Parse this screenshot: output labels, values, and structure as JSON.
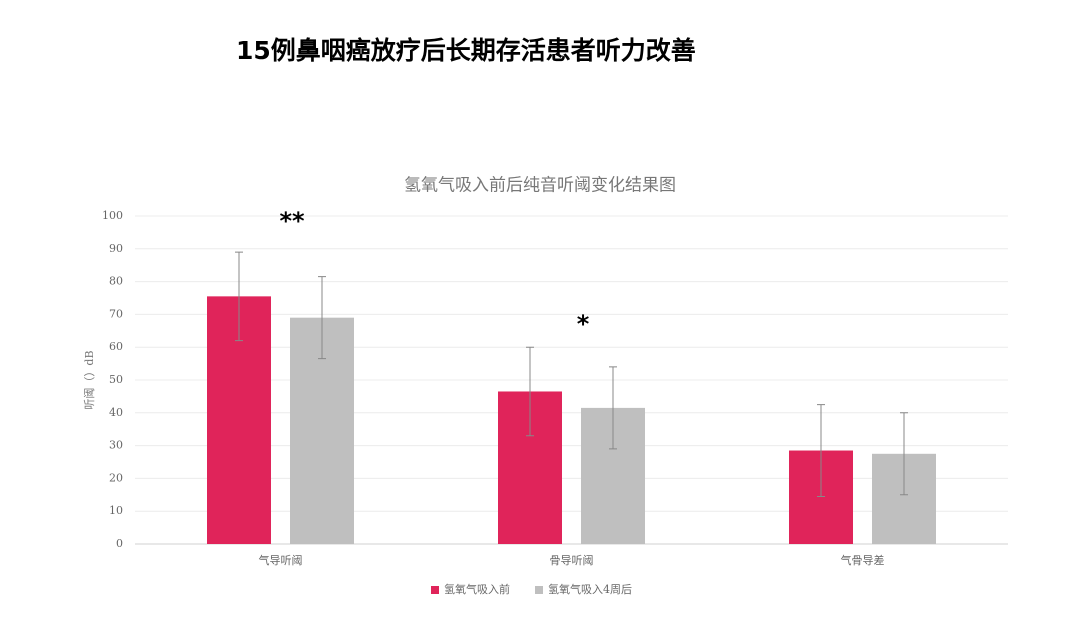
{
  "title": "15例鼻咽癌放疗后长期存活患者听力改善",
  "chart_data": {
    "type": "bar",
    "title": "氢氧气吸入前后纯音听阈变化结果图",
    "y_label": "听阈（）dB",
    "categories": [
      "气导听阈",
      "骨导听阈",
      "气骨导差"
    ],
    "series": [
      {
        "name": "氢氧气吸入前",
        "color": "#e0245a",
        "values": [
          75.5,
          46.5,
          28.5
        ],
        "errors": [
          13.5,
          13.5,
          14
        ]
      },
      {
        "name": "氢氧气吸入4周后",
        "color": "#bfbfbf",
        "values": [
          69,
          41.5,
          27.5
        ],
        "errors": [
          12.5,
          12.5,
          12.5
        ]
      }
    ],
    "annotations": [
      "**",
      "*"
    ],
    "ylim": [
      0,
      100
    ],
    "yticks": [
      0,
      10,
      20,
      30,
      40,
      50,
      60,
      70,
      80,
      90,
      100
    ],
    "grid": true,
    "legend": "bottom"
  }
}
